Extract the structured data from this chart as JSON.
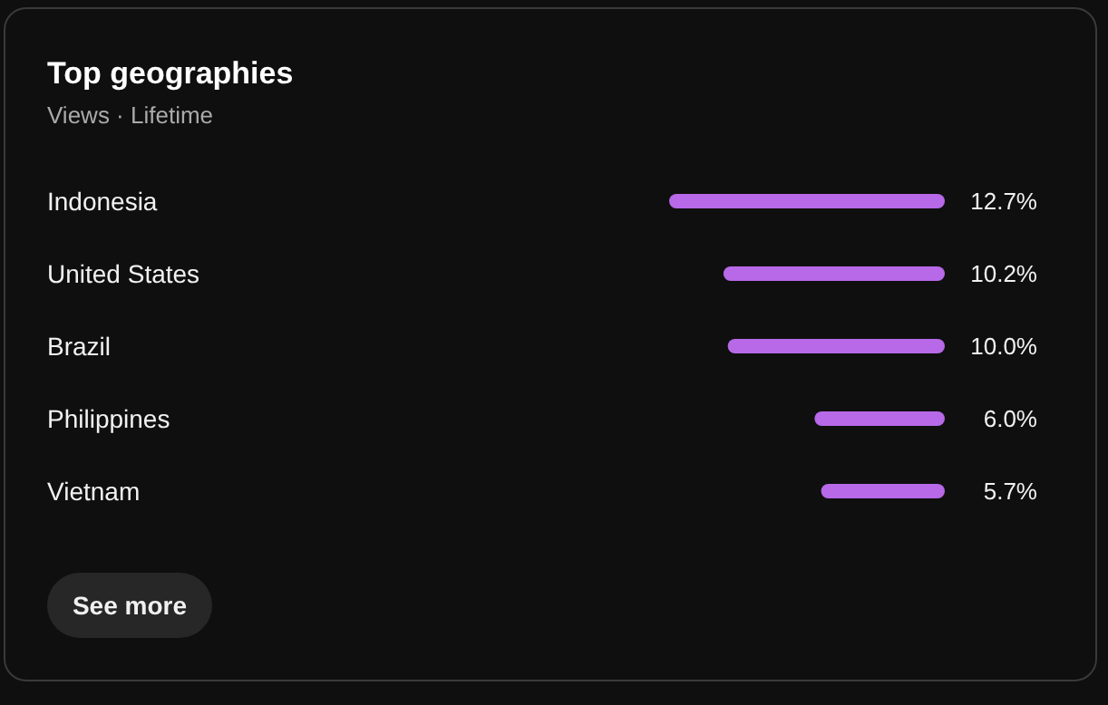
{
  "chart_data": {
    "type": "bar",
    "orientation": "horizontal",
    "title": "Top geographies",
    "subtitle": "Views · Lifetime",
    "categories": [
      "Indonesia",
      "United States",
      "Brazil",
      "Philippines",
      "Vietnam"
    ],
    "values": [
      12.7,
      10.2,
      10.0,
      6.0,
      5.7
    ],
    "value_labels": [
      "12.7%",
      "10.2%",
      "10.0%",
      "6.0%",
      "5.7%"
    ],
    "color": "#b769e8",
    "annotations": [
      "See more"
    ]
  }
}
